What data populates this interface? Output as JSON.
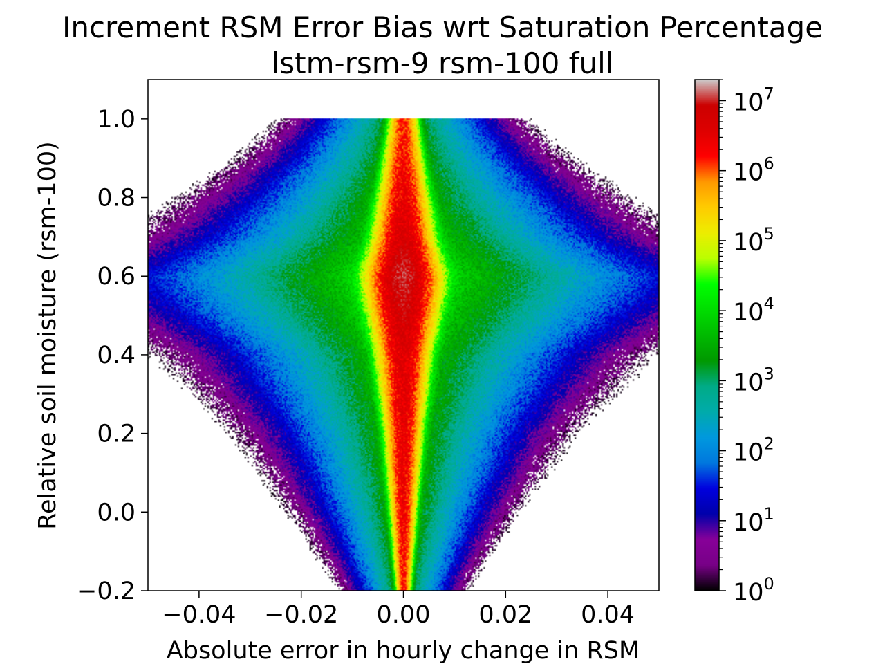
{
  "chart_data": {
    "type": "heatmap",
    "title": "Increment RSM Error Bias wrt Saturation Percentage",
    "subtitle": "lstm-rsm-9 rsm-100 full",
    "xlabel": "Absolute error in hourly change in RSM",
    "ylabel": "Relative soil moisture (rsm-100)",
    "xlim": [
      -0.05,
      0.05
    ],
    "ylim": [
      -0.2,
      1.1
    ],
    "x_ticks": [
      -0.04,
      -0.02,
      0.0,
      0.02,
      0.04
    ],
    "x_tick_labels": [
      "−0.04",
      "−0.02",
      "0.00",
      "0.02",
      "0.04"
    ],
    "y_ticks": [
      -0.2,
      0.0,
      0.2,
      0.4,
      0.6,
      0.8,
      1.0
    ],
    "y_tick_labels": [
      "−0.2",
      "0.0",
      "0.2",
      "0.4",
      "0.6",
      "0.8",
      "1.0"
    ],
    "grid": false,
    "colorbar": {
      "scale": "log",
      "range": [
        1,
        20000000
      ],
      "colormap": "nipy_spectral",
      "ticks": [
        1,
        10,
        100,
        1000,
        10000,
        100000,
        1000000,
        10000000
      ],
      "tick_bases": [
        "10",
        "10",
        "10",
        "10",
        "10",
        "10",
        "10",
        "10"
      ],
      "tick_exponents": [
        "0",
        "1",
        "2",
        "3",
        "4",
        "5",
        "6",
        "7"
      ]
    },
    "distribution": {
      "center_x": 0.0,
      "peak_count_at_rsm": 0.6,
      "max_count": 10000000,
      "width_profile": [
        {
          "y": -0.2,
          "sigma": 0.0013,
          "peak": 1500000
        },
        {
          "y": 0.0,
          "sigma": 0.0022,
          "peak": 2500000
        },
        {
          "y": 0.2,
          "sigma": 0.0032,
          "peak": 3000000
        },
        {
          "y": 0.4,
          "sigma": 0.0045,
          "peak": 4000000
        },
        {
          "y": 0.55,
          "sigma": 0.006,
          "peak": 8000000
        },
        {
          "y": 0.6,
          "sigma": 0.0062,
          "peak": 10000000
        },
        {
          "y": 0.7,
          "sigma": 0.005,
          "peak": 5000000
        },
        {
          "y": 0.8,
          "sigma": 0.0042,
          "peak": 3000000
        },
        {
          "y": 0.9,
          "sigma": 0.0033,
          "peak": 2000000
        },
        {
          "y": 1.0,
          "sigma": 0.0025,
          "peak": 1500000
        }
      ]
    }
  }
}
